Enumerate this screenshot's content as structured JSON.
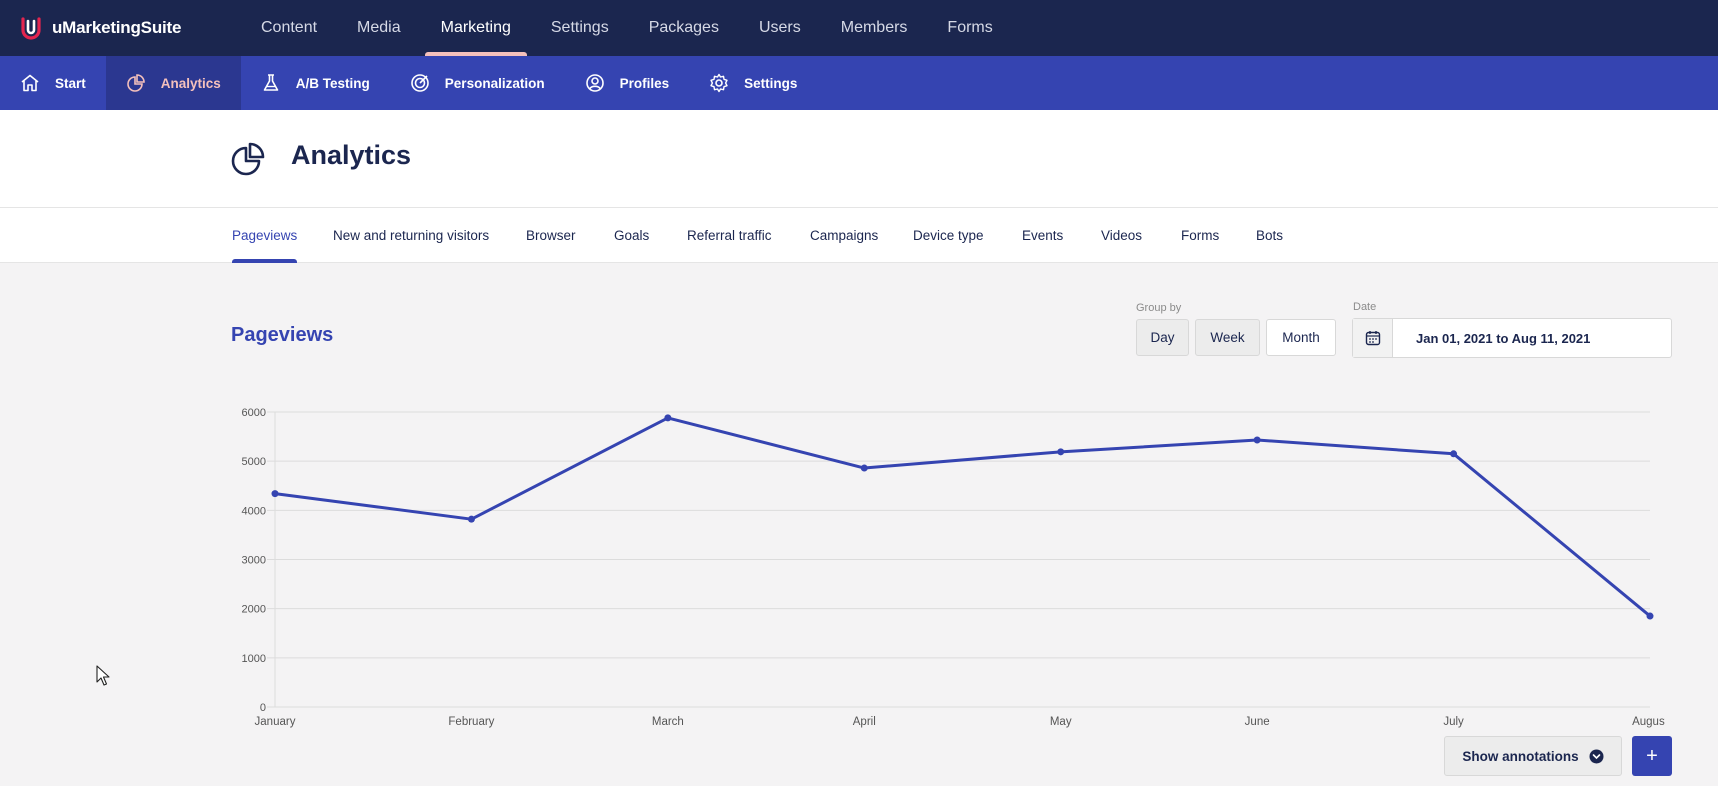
{
  "brand": {
    "name": "uMarketingSuite",
    "icon": "umarketingsuite-logo"
  },
  "top_nav": {
    "items": [
      {
        "label": "Content",
        "active": false
      },
      {
        "label": "Media",
        "active": false
      },
      {
        "label": "Marketing",
        "active": true
      },
      {
        "label": "Settings",
        "active": false
      },
      {
        "label": "Packages",
        "active": false
      },
      {
        "label": "Users",
        "active": false
      },
      {
        "label": "Members",
        "active": false
      },
      {
        "label": "Forms",
        "active": false
      }
    ]
  },
  "sub_nav": {
    "items": [
      {
        "label": "Start",
        "icon": "home-icon",
        "active": false
      },
      {
        "label": "Analytics",
        "icon": "pie-chart-icon",
        "active": true
      },
      {
        "label": "A/B Testing",
        "icon": "flask-icon",
        "active": false
      },
      {
        "label": "Personalization",
        "icon": "target-icon",
        "active": false
      },
      {
        "label": "Profiles",
        "icon": "user-circle-icon",
        "active": false
      },
      {
        "label": "Settings",
        "icon": "gear-icon",
        "active": false
      }
    ]
  },
  "page": {
    "title": "Analytics",
    "icon": "pie-chart-icon"
  },
  "tabs": [
    {
      "label": "Pageviews",
      "active": true
    },
    {
      "label": "New and returning visitors",
      "active": false
    },
    {
      "label": "Browser",
      "active": false
    },
    {
      "label": "Goals",
      "active": false
    },
    {
      "label": "Referral traffic",
      "active": false
    },
    {
      "label": "Campaigns",
      "active": false
    },
    {
      "label": "Device type",
      "active": false
    },
    {
      "label": "Events",
      "active": false
    },
    {
      "label": "Videos",
      "active": false
    },
    {
      "label": "Forms",
      "active": false
    },
    {
      "label": "Bots",
      "active": false
    }
  ],
  "section": {
    "title": "Pageviews"
  },
  "group_by": {
    "label": "Group by",
    "options": [
      "Day",
      "Week",
      "Month"
    ],
    "selected": "Month"
  },
  "date": {
    "label": "Date",
    "value": "Jan 01, 2021 to Aug 11, 2021",
    "icon": "calendar-icon"
  },
  "chart_data": {
    "type": "line",
    "categories": [
      "January",
      "February",
      "March",
      "April",
      "May",
      "June",
      "July",
      "August"
    ],
    "series": [
      {
        "values": [
          4340,
          3820,
          5880,
          4860,
          5190,
          5430,
          5150,
          1850
        ]
      }
    ],
    "ylim": [
      0,
      6000
    ],
    "yticks": [
      0,
      1000,
      2000,
      3000,
      4000,
      5000,
      6000
    ],
    "grid": true,
    "line_color": "#3544b1"
  },
  "annotations": {
    "show_label": "Show annotations",
    "add_label": "+"
  }
}
